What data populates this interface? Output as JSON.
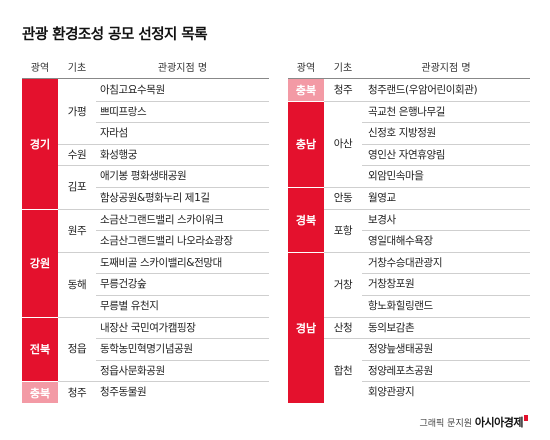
{
  "title": "관광 환경조성 공모 선정지 목록",
  "headers": {
    "region": "광역",
    "basic": "기초",
    "site": "관광지점 명"
  },
  "left": {
    "regions": [
      {
        "name": "경기",
        "start": 0,
        "count": 6
      },
      {
        "name": "강원",
        "start": 6,
        "count": 5
      },
      {
        "name": "전북",
        "start": 11,
        "count": 3
      },
      {
        "name": "충북",
        "start": 14,
        "count": 1,
        "light": true
      }
    ],
    "basics": [
      {
        "name": "가평",
        "start": 0,
        "count": 3
      },
      {
        "name": "수원",
        "start": 3,
        "count": 1
      },
      {
        "name": "김포",
        "start": 4,
        "count": 2
      },
      {
        "name": "원주",
        "start": 6,
        "count": 2
      },
      {
        "name": "동해",
        "start": 8,
        "count": 3
      },
      {
        "name": "정읍",
        "start": 11,
        "count": 3
      },
      {
        "name": "청주",
        "start": 14,
        "count": 1
      }
    ],
    "sites": [
      "아침고요수목원",
      "쁘띠프랑스",
      "자라섬",
      "화성행궁",
      "애기봉 평화생태공원",
      "함상공원&평화누리 제1길",
      "소금산그랜드밸리 스카이워크",
      "소금산그랜드밸리 나오라쇼광장",
      "도째비골 스카이밸리&전망대",
      "무릉건강숲",
      "무릉별 유천지",
      "내장산 국민여가캠핑장",
      "동학농민혁명기념공원",
      "정읍사문화공원",
      "청주동물원"
    ]
  },
  "right": {
    "regions": [
      {
        "name": "충북",
        "start": 0,
        "count": 1,
        "light": true
      },
      {
        "name": "충남",
        "start": 1,
        "count": 4
      },
      {
        "name": "경북",
        "start": 5,
        "count": 3
      },
      {
        "name": "경남",
        "start": 8,
        "count": 7
      }
    ],
    "basics": [
      {
        "name": "청주",
        "start": 0,
        "count": 1
      },
      {
        "name": "아산",
        "start": 1,
        "count": 4
      },
      {
        "name": "안동",
        "start": 5,
        "count": 1
      },
      {
        "name": "포항",
        "start": 6,
        "count": 2
      },
      {
        "name": "거창",
        "start": 8,
        "count": 3
      },
      {
        "name": "산청",
        "start": 11,
        "count": 1
      },
      {
        "name": "합천",
        "start": 12,
        "count": 3
      }
    ],
    "sites": [
      "청주랜드(우암어린이회관)",
      "곡교천 은행나무길",
      "신정호 지방정원",
      "영인산 자연휴양림",
      "외암민속마을",
      "월영교",
      "보경사",
      "영일대해수욕장",
      "거창수승대관광지",
      "거창창포원",
      "항노화힐링랜드",
      "동의보감촌",
      "정양늪생태공원",
      "정양레포츠공원",
      "회양관광지"
    ]
  },
  "footer": {
    "credit": "그래픽 문지원",
    "brand": "아시아경제"
  }
}
